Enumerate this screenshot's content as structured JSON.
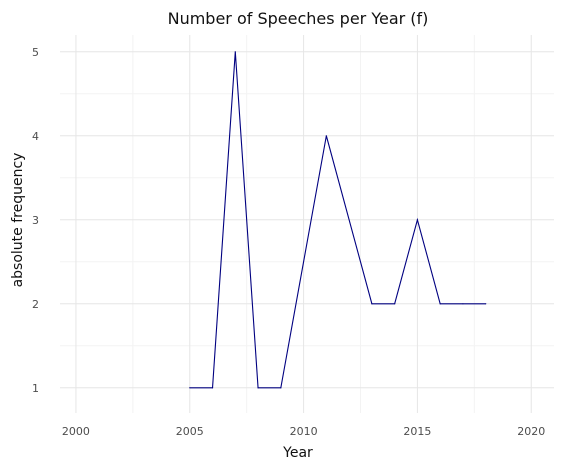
{
  "chart_data": {
    "type": "line",
    "title": "Number of Speeches per Year (f)",
    "xlabel": "Year",
    "ylabel": "absolute frequency",
    "xlim": [
      1999.3,
      2021
    ],
    "ylim": [
      0.7,
      5.2
    ],
    "x_ticks": [
      2000,
      2005,
      2010,
      2015,
      2020
    ],
    "y_ticks": [
      1,
      2,
      3,
      4,
      5
    ],
    "grid": true,
    "legend": "none",
    "line_color": "#000080",
    "grid_color": "#e6e6e6",
    "grid_minor_color": "#f3f3f3",
    "series": [
      {
        "x": [
          2005,
          2006,
          2007,
          2008,
          2009,
          2011,
          2013,
          2014,
          2015,
          2016,
          2017,
          2018
        ],
        "values": [
          1,
          1,
          5,
          1,
          1,
          4,
          2,
          2,
          3,
          2,
          2,
          2
        ]
      }
    ]
  }
}
